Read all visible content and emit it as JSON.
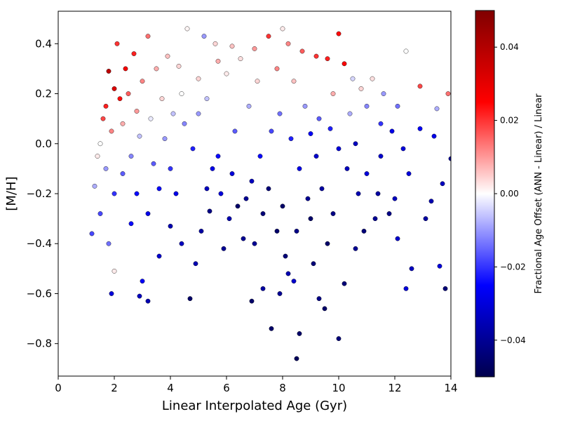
{
  "chart_data": {
    "type": "scatter",
    "title": "",
    "xlabel": "Linear Interpolated Age (Gyr)",
    "ylabel": "[M/H]",
    "xlim": [
      0,
      14
    ],
    "ylim": [
      -0.93,
      0.53
    ],
    "xticks": [
      0,
      2,
      4,
      6,
      8,
      10,
      12,
      14
    ],
    "xtick_labels": [
      "0",
      "2",
      "4",
      "6",
      "8",
      "10",
      "12",
      "14"
    ],
    "yticks": [
      -0.8,
      -0.6,
      -0.4,
      -0.2,
      0.0,
      0.2,
      0.4
    ],
    "ytick_labels": [
      "−0.8",
      "−0.6",
      "−0.4",
      "−0.2",
      "0.0",
      "0.2",
      "0.4"
    ],
    "grid": false,
    "colorbar": {
      "label": "Fractional Age Offset (ANN - Linear) / Linear",
      "range": [
        -0.05,
        0.05
      ],
      "ticks": [
        0.04,
        0.02,
        0.0,
        -0.02,
        -0.04
      ],
      "tick_labels": [
        "0.04",
        "0.02",
        "0.00",
        "−0.02",
        "−0.04"
      ],
      "colormap": "seismic",
      "colors": [
        "#00004d",
        "#0000ff",
        "#ffffff",
        "#ff0000",
        "#800000"
      ]
    },
    "point_style": {
      "edge_color": "#000000"
    },
    "points": [
      [
        1.8,
        0.29,
        0.038
      ],
      [
        2.0,
        0.22,
        0.032
      ],
      [
        2.2,
        0.18,
        0.024
      ],
      [
        1.6,
        0.1,
        0.018
      ],
      [
        2.4,
        0.3,
        0.027
      ],
      [
        2.7,
        0.36,
        0.022
      ],
      [
        3.2,
        0.43,
        0.014
      ],
      [
        2.1,
        0.4,
        0.02
      ],
      [
        1.9,
        0.05,
        0.012
      ],
      [
        1.7,
        0.15,
        0.022
      ],
      [
        2.5,
        0.2,
        0.016
      ],
      [
        3.0,
        0.25,
        0.012
      ],
      [
        2.3,
        0.08,
        0.008
      ],
      [
        2.8,
        0.13,
        0.01
      ],
      [
        3.5,
        0.3,
        0.008
      ],
      [
        3.9,
        0.35,
        0.006
      ],
      [
        4.3,
        0.31,
        0.004
      ],
      [
        4.6,
        0.46,
        0.001
      ],
      [
        5.2,
        0.43,
        -0.01
      ],
      [
        5.6,
        0.4,
        0.004
      ],
      [
        6.2,
        0.39,
        0.006
      ],
      [
        6.5,
        0.34,
        0.003
      ],
      [
        7.0,
        0.38,
        0.01
      ],
      [
        7.5,
        0.43,
        0.02
      ],
      [
        8.0,
        0.46,
        0.002
      ],
      [
        8.2,
        0.4,
        0.012
      ],
      [
        8.7,
        0.37,
        0.016
      ],
      [
        9.2,
        0.35,
        0.02
      ],
      [
        9.6,
        0.34,
        0.022
      ],
      [
        10.0,
        0.44,
        0.024
      ],
      [
        10.2,
        0.32,
        0.026
      ],
      [
        10.5,
        0.26,
        -0.004
      ],
      [
        11.2,
        0.26,
        0.003
      ],
      [
        11.6,
        0.2,
        -0.01
      ],
      [
        12.1,
        0.15,
        -0.014
      ],
      [
        12.4,
        0.37,
        0.0
      ],
      [
        12.9,
        0.23,
        0.018
      ],
      [
        13.5,
        0.14,
        -0.008
      ],
      [
        13.9,
        0.2,
        0.014
      ],
      [
        1.4,
        -0.05,
        0.002
      ],
      [
        1.3,
        -0.17,
        -0.008
      ],
      [
        1.5,
        -0.28,
        -0.018
      ],
      [
        1.8,
        -0.4,
        -0.014
      ],
      [
        2.0,
        -0.51,
        0.002
      ],
      [
        1.9,
        -0.6,
        -0.03
      ],
      [
        1.2,
        -0.36,
        -0.018
      ],
      [
        2.6,
        -0.32,
        -0.024
      ],
      [
        3.0,
        -0.55,
        -0.026
      ],
      [
        2.9,
        -0.61,
        -0.034
      ],
      [
        3.2,
        -0.63,
        -0.036
      ],
      [
        3.6,
        -0.45,
        -0.032
      ],
      [
        4.0,
        -0.33,
        -0.036
      ],
      [
        4.2,
        -0.2,
        -0.028
      ],
      [
        3.4,
        -0.08,
        -0.016
      ],
      [
        3.8,
        0.02,
        -0.01
      ],
      [
        4.5,
        0.08,
        -0.012
      ],
      [
        5.0,
        0.12,
        -0.01
      ],
      [
        5.3,
        0.18,
        -0.006
      ],
      [
        4.8,
        -0.02,
        -0.022
      ],
      [
        5.5,
        -0.1,
        -0.028
      ],
      [
        5.8,
        -0.2,
        -0.03
      ],
      [
        6.1,
        -0.3,
        -0.036
      ],
      [
        6.6,
        -0.38,
        -0.04
      ],
      [
        4.7,
        -0.62,
        -0.046
      ],
      [
        5.1,
        -0.35,
        -0.038
      ],
      [
        5.4,
        -0.27,
        -0.042
      ],
      [
        5.9,
        -0.42,
        -0.04
      ],
      [
        6.4,
        -0.25,
        -0.046
      ],
      [
        6.9,
        -0.15,
        -0.034
      ],
      [
        7.2,
        -0.05,
        -0.024
      ],
      [
        7.6,
        0.05,
        -0.018
      ],
      [
        7.9,
        0.12,
        -0.014
      ],
      [
        8.3,
        0.02,
        -0.022
      ],
      [
        8.6,
        -0.1,
        -0.028
      ],
      [
        8.9,
        -0.22,
        -0.04
      ],
      [
        7.3,
        -0.28,
        -0.044
      ],
      [
        7.8,
        -0.35,
        -0.046
      ],
      [
        8.1,
        -0.45,
        -0.044
      ],
      [
        8.4,
        -0.55,
        -0.032
      ],
      [
        8.5,
        -0.86,
        -0.048
      ],
      [
        8.6,
        -0.76,
        -0.046
      ],
      [
        7.6,
        -0.74,
        -0.046
      ],
      [
        7.9,
        -0.6,
        -0.04
      ],
      [
        8.2,
        -0.52,
        -0.036
      ],
      [
        7.3,
        -0.58,
        -0.038
      ],
      [
        6.9,
        -0.63,
        -0.046
      ],
      [
        9.3,
        -0.62,
        -0.042
      ],
      [
        9.5,
        -0.66,
        -0.046
      ],
      [
        10.0,
        -0.78,
        -0.044
      ],
      [
        9.1,
        -0.48,
        -0.044
      ],
      [
        9.6,
        -0.4,
        -0.046
      ],
      [
        10.2,
        -0.56,
        -0.044
      ],
      [
        10.6,
        -0.42,
        -0.04
      ],
      [
        10.9,
        -0.35,
        -0.044
      ],
      [
        11.3,
        -0.3,
        -0.04
      ],
      [
        11.8,
        -0.28,
        -0.042
      ],
      [
        12.1,
        -0.38,
        -0.032
      ],
      [
        12.6,
        -0.5,
        -0.034
      ],
      [
        12.4,
        -0.58,
        -0.03
      ],
      [
        13.3,
        -0.23,
        -0.036
      ],
      [
        13.7,
        -0.16,
        -0.034
      ],
      [
        13.6,
        -0.49,
        -0.03
      ],
      [
        13.8,
        -0.58,
        -0.044
      ],
      [
        14.0,
        -0.06,
        -0.04
      ],
      [
        13.4,
        0.03,
        -0.028
      ],
      [
        12.9,
        0.06,
        -0.026
      ],
      [
        12.3,
        -0.02,
        -0.03
      ],
      [
        11.9,
        0.05,
        -0.028
      ],
      [
        11.5,
        -0.05,
        -0.032
      ],
      [
        11.0,
        -0.12,
        -0.03
      ],
      [
        10.7,
        -0.2,
        -0.036
      ],
      [
        10.3,
        -0.1,
        -0.034
      ],
      [
        10.0,
        -0.02,
        -0.03
      ],
      [
        9.7,
        0.06,
        -0.022
      ],
      [
        9.3,
        0.1,
        -0.016
      ],
      [
        9.0,
        0.04,
        -0.026
      ],
      [
        10.6,
        0.0,
        -0.034
      ],
      [
        11.4,
        -0.2,
        -0.038
      ],
      [
        12.0,
        -0.22,
        -0.034
      ],
      [
        12.5,
        -0.12,
        -0.03
      ],
      [
        13.1,
        -0.3,
        -0.038
      ],
      [
        9.8,
        -0.28,
        -0.042
      ],
      [
        9.4,
        -0.18,
        -0.038
      ],
      [
        6.3,
        0.05,
        -0.016
      ],
      [
        6.8,
        0.15,
        -0.008
      ],
      [
        7.1,
        0.25,
        0.004
      ],
      [
        6.0,
        0.28,
        0.002
      ],
      [
        5.7,
        0.33,
        0.008
      ],
      [
        5.0,
        0.26,
        0.004
      ],
      [
        4.4,
        0.2,
        0.0
      ],
      [
        4.1,
        0.12,
        -0.006
      ],
      [
        3.7,
        0.18,
        0.004
      ],
      [
        3.3,
        0.1,
        -0.002
      ],
      [
        2.9,
        0.03,
        -0.006
      ],
      [
        2.6,
        -0.05,
        -0.012
      ],
      [
        2.3,
        -0.12,
        -0.016
      ],
      [
        2.0,
        -0.2,
        -0.02
      ],
      [
        1.7,
        -0.1,
        -0.01
      ],
      [
        1.5,
        0.0,
        0.0
      ],
      [
        2.8,
        -0.2,
        -0.024
      ],
      [
        3.2,
        -0.28,
        -0.028
      ],
      [
        3.6,
        -0.18,
        -0.024
      ],
      [
        4.0,
        -0.1,
        -0.02
      ],
      [
        4.4,
        -0.4,
        -0.034
      ],
      [
        4.9,
        -0.48,
        -0.036
      ],
      [
        5.3,
        -0.18,
        -0.034
      ],
      [
        5.7,
        -0.05,
        -0.024
      ],
      [
        6.2,
        -0.12,
        -0.03
      ],
      [
        6.7,
        -0.22,
        -0.04
      ],
      [
        7.0,
        -0.4,
        -0.04
      ],
      [
        7.5,
        -0.18,
        -0.044
      ],
      [
        8.0,
        -0.25,
        -0.046
      ],
      [
        8.5,
        -0.35,
        -0.042
      ],
      [
        9.0,
        -0.3,
        -0.046
      ],
      [
        9.2,
        -0.05,
        -0.032
      ],
      [
        8.8,
        0.15,
        -0.01
      ],
      [
        8.4,
        0.25,
        0.006
      ],
      [
        7.8,
        0.3,
        0.012
      ],
      [
        9.8,
        0.2,
        0.008
      ],
      [
        10.4,
        0.12,
        -0.008
      ],
      [
        11.0,
        0.15,
        -0.012
      ],
      [
        11.5,
        0.08,
        -0.02
      ],
      [
        10.8,
        0.22,
        0.004
      ]
    ]
  }
}
